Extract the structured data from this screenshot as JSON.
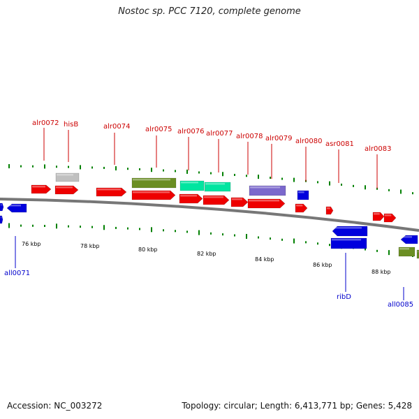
{
  "title": "Nostoc sp. PCC 7120, complete genome",
  "footer": {
    "accession": "Accession: NC_003272",
    "summary": "Topology: circular; Length: 6,413,771 bp; Genes: 5,428"
  },
  "colors": {
    "forward": "#ee0000",
    "reverse": "#0000dd",
    "olive": "#6b8e23",
    "teal": "#00e5a0",
    "slate": "#7b68cc",
    "gray": "#c0c0c0",
    "forward_label": "#cc0000",
    "reverse_label": "#0000cc",
    "axis": "#777777",
    "gc_tick": "#008000"
  },
  "top_labels": [
    "alr0072",
    "hisB",
    "alr0074",
    "alr0075",
    "alr0076",
    "alr0077",
    "alr0078",
    "alr0079",
    "alr0080",
    "asr0081",
    "alr0083"
  ],
  "bottom_labels": [
    "all0071",
    "ribD",
    "all0085"
  ],
  "kbp_ticks": [
    "76 kbp",
    "78 kbp",
    "80 kbp",
    "82 kbp",
    "84 kbp",
    "86 kbp",
    "88 kbp"
  ]
}
